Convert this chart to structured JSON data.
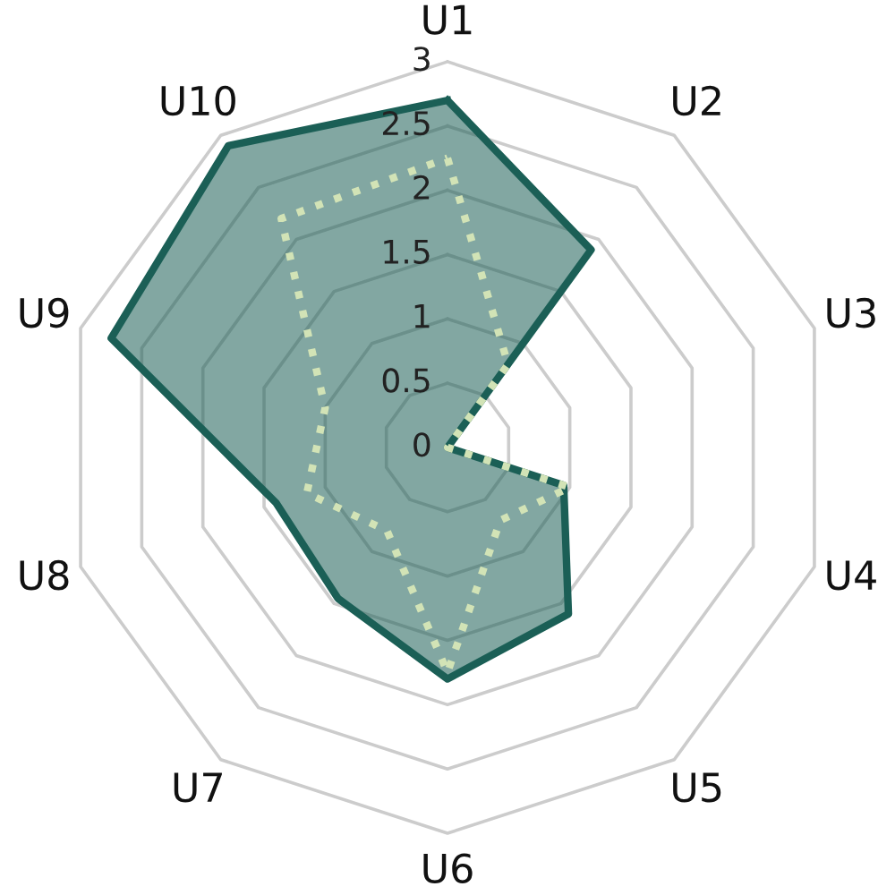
{
  "chart_data": {
    "type": "radar",
    "categories": [
      "U1",
      "U2",
      "U3",
      "U4",
      "U5",
      "U6",
      "U7",
      "U8",
      "U9",
      "U10"
    ],
    "ylim": [
      0,
      3
    ],
    "yticks": [
      0,
      0.5,
      1,
      1.5,
      2,
      2.5,
      3
    ],
    "grid": true,
    "legend": false,
    "series": [
      {
        "color": "#1b5f56",
        "line_style": "solid",
        "values": [
          2.7,
          1.9,
          0,
          0.95,
          1.6,
          1.8,
          1.45,
          1.4,
          2.75,
          2.9
        ]
      },
      {
        "color": "#d2e3b6",
        "line_style": "dotted",
        "values": [
          2.25,
          0.8,
          0,
          1.0,
          0.7,
          1.75,
          0.8,
          1.15,
          1.0,
          2.2
        ]
      }
    ]
  }
}
